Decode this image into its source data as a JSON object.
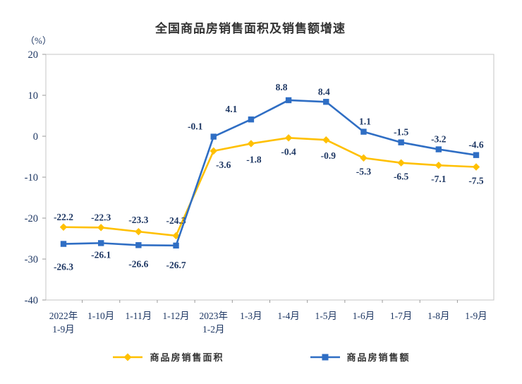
{
  "title": "全国商品房销售面积及销售额增速",
  "unit_label": "（%）",
  "chart_data": {
    "type": "line",
    "title": "全国商品房销售面积及销售额增速",
    "ylabel": "（%）",
    "xlabel": "",
    "grid": false,
    "legend_position": "bottom",
    "ylim": [
      -40,
      20
    ],
    "ytick_step": 10,
    "ytick_labels": [
      "20",
      "10",
      "0",
      "-10",
      "-20",
      "-30",
      "-40"
    ],
    "axis_color": "#c5c5c5",
    "tick_color": "#9a9a9a",
    "label_color": "#1F3864",
    "categories": [
      [
        "2022年",
        "1-9月"
      ],
      [
        "1-10月"
      ],
      [
        "1-11月"
      ],
      [
        "1-12月"
      ],
      [
        "2023年",
        "1-2月"
      ],
      [
        "1-3月"
      ],
      [
        "1-4月"
      ],
      [
        "1-5月"
      ],
      [
        "1-6月"
      ],
      [
        "1-7月"
      ],
      [
        "1-8月"
      ],
      [
        "1-9月"
      ]
    ],
    "series": [
      {
        "name": "商品房销售面积",
        "color": "#FFC000",
        "marker": "diamond",
        "values": [
          -22.2,
          -22.3,
          -23.3,
          -24.3,
          -3.6,
          -1.8,
          -0.4,
          -0.9,
          -5.3,
          -6.5,
          -7.1,
          -7.5
        ],
        "label_side": [
          "above",
          "above",
          "above",
          "above",
          "below",
          "below",
          "below",
          "below",
          "below",
          "below",
          "below",
          "below"
        ],
        "label_dx": [
          0,
          0,
          0,
          0,
          14,
          4,
          0,
          3,
          0,
          0,
          0,
          0
        ],
        "label_dy": [
          0,
          0,
          -2,
          -7,
          0,
          3,
          0,
          3,
          0,
          0,
          0,
          0
        ]
      },
      {
        "name": "商品房销售额",
        "color": "#2F6EC4",
        "marker": "square",
        "values": [
          -26.3,
          -26.1,
          -26.6,
          -26.7,
          -0.1,
          4.1,
          8.8,
          8.4,
          1.1,
          -1.5,
          -3.2,
          -4.6
        ],
        "label_side": [
          "below",
          "below",
          "below",
          "below",
          "above",
          "above",
          "above",
          "above",
          "above",
          "above",
          "above",
          "above"
        ],
        "label_dx": [
          0,
          0,
          0,
          0,
          -26,
          -28,
          -10,
          -3,
          2,
          0,
          0,
          0
        ],
        "label_dy": [
          13,
          -3,
          7,
          8,
          0,
          0,
          -4,
          0,
          0,
          0,
          0,
          0
        ]
      }
    ]
  },
  "legend": {
    "items": [
      {
        "label": "商品房销售面积"
      },
      {
        "label": "商品房销售额"
      }
    ]
  }
}
